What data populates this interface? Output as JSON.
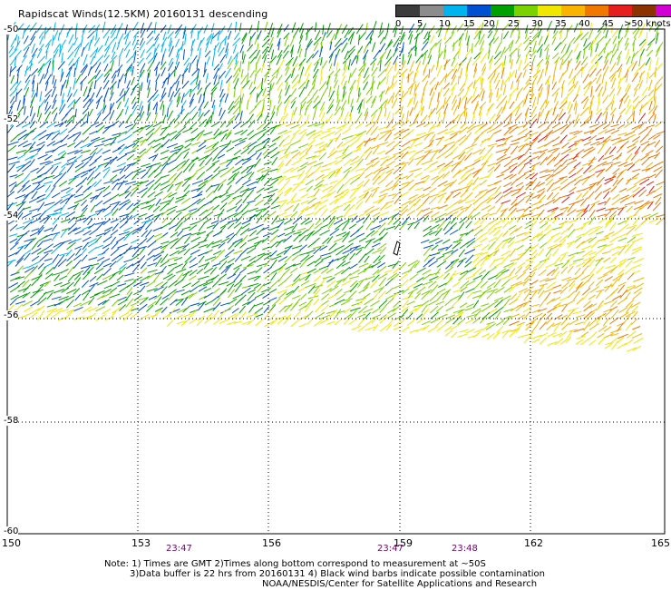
{
  "title": "Rapidscat Winds(12.5KM) 20160131 descending",
  "legend": {
    "colors": [
      "#3c3c3c",
      "#8c8c8c",
      "#00b4f0",
      "#0050d2",
      "#00a000",
      "#7ad200",
      "#f0e600",
      "#f8b400",
      "#f07800",
      "#e61e1e",
      "#8c3200",
      "#d200d2",
      "#6a00a8"
    ],
    "labels": [
      "0",
      "5",
      "10",
      "15",
      "20",
      "25",
      "30",
      "35",
      "40",
      "45",
      ">50 knots"
    ]
  },
  "axes": {
    "x_ticks": [
      "150",
      "153",
      "156",
      "159",
      "162",
      "165"
    ],
    "y_ticks": [
      "-50",
      "-52",
      "-54",
      "-56",
      "-58",
      "-60"
    ]
  },
  "times": [
    "23:47",
    "23:47",
    "23:48"
  ],
  "notes": {
    "line1": "Note: 1) Times are GMT 2)Times along bottom correspond to measurement at ~50S",
    "line2": "3)Data buffer is 22 hrs from 20160131 4) Black wind barbs indicate possible contamination",
    "line3": "NOAA/NESDIS/Center for Satellite Applications and Research"
  }
}
